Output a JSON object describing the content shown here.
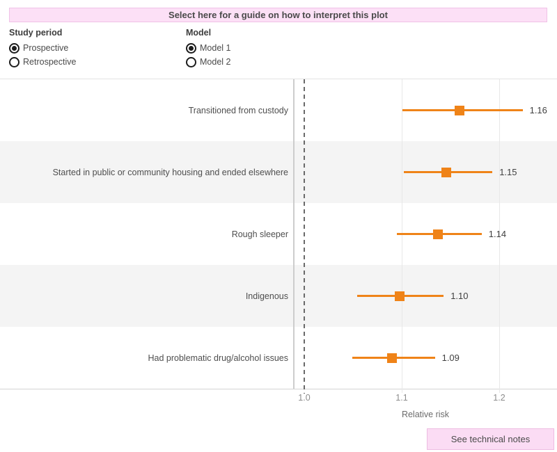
{
  "banner": {
    "label": "Select here for a guide on how to interpret this plot"
  },
  "controls": [
    {
      "title": "Study period",
      "options": [
        {
          "label": "Prospective",
          "selected": true
        },
        {
          "label": "Retrospective",
          "selected": false
        }
      ]
    },
    {
      "title": "Model",
      "options": [
        {
          "label": "Model 1",
          "selected": true
        },
        {
          "label": "Model 2",
          "selected": false
        }
      ]
    }
  ],
  "chart_data": {
    "type": "scatter",
    "subtype": "forest-plot-error-bars",
    "title": "",
    "xlabel": "Relative risk",
    "ylabel": "",
    "x_ticks": [
      "1.0",
      "1.1",
      "1.2"
    ],
    "x_tick_values": [
      1.0,
      1.1,
      1.2
    ],
    "xlim": [
      0.989,
      1.259
    ],
    "reference_line_x": 1.0,
    "grid": "vertical-light",
    "legend": "none",
    "marker_color": "#ef8318",
    "band_color": "#f4f4f4",
    "rows": [
      {
        "category": "Transitioned from custody",
        "value": 1.159,
        "value_label": "1.16",
        "ci_low": 1.101,
        "ci_high": 1.224
      },
      {
        "category": "Started in public or community housing and ended elsewhere",
        "value": 1.146,
        "value_label": "1.15",
        "ci_low": 1.102,
        "ci_high": 1.193
      },
      {
        "category": "Rough sleeper",
        "value": 1.137,
        "value_label": "1.14",
        "ci_low": 1.095,
        "ci_high": 1.182
      },
      {
        "category": "Indigenous",
        "value": 1.098,
        "value_label": "1.10",
        "ci_low": 1.054,
        "ci_high": 1.143
      },
      {
        "category": "Had problematic drug/alcohol issues",
        "value": 1.09,
        "value_label": "1.09",
        "ci_low": 1.049,
        "ci_high": 1.134
      }
    ]
  },
  "footer": {
    "technical_notes_label": "See technical notes"
  },
  "colors": {
    "banner_bg": "#fce0f6",
    "banner_border": "#f0c2e7",
    "accent_orange": "#ef8318",
    "band_gray": "#f4f4f4",
    "text_dark": "#4a4a4a",
    "tick_text": "#8b8b8b"
  }
}
